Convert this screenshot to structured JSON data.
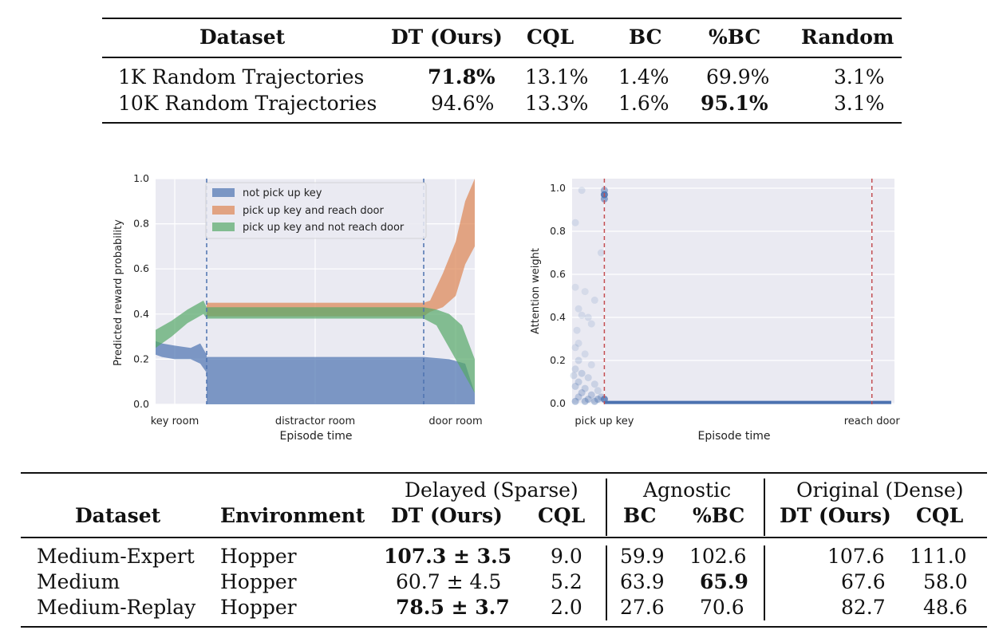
{
  "table1": {
    "headers": [
      "Dataset",
      "DT (Ours)",
      "CQL",
      "BC",
      "%BC",
      "Random"
    ],
    "rows": [
      {
        "dataset": "1K Random Trajectories",
        "dt": "71.8%",
        "cql": "13.1%",
        "bc": "1.4%",
        "pbc": "69.9%",
        "random": "3.1%"
      },
      {
        "dataset": "10K Random Trajectories",
        "dt": "94.6%",
        "cql": "13.3%",
        "bc": "1.6%",
        "pbc": "95.1%",
        "random": "3.1%"
      }
    ]
  },
  "chart_data": [
    {
      "type": "area",
      "xlabel": "Episode time",
      "ylabel": "Predicted reward probability",
      "ylim": [
        0,
        1.0
      ],
      "yticks": [
        "0.0",
        "0.2",
        "0.4",
        "0.6",
        "0.8",
        "1.0"
      ],
      "xtick_labels": [
        "key room",
        "distractor room",
        "door room"
      ],
      "legend": [
        "not pick up key",
        "pick up key and reach door",
        "pick up key and not reach door"
      ],
      "legend_position": "top-center",
      "grid": true,
      "colors": {
        "blue": "#4c72b0",
        "orange": "#dd8452",
        "green": "#55a868",
        "bg": "#eaeaf2",
        "vline": "#4c72b0"
      },
      "series": [
        {
          "name": "not pick up key",
          "x": [
            0,
            0.02,
            0.06,
            0.11,
            0.14,
            0.16,
            0.16,
            0.5,
            0.84,
            0.92,
            0.97,
            1.0
          ],
          "upper": [
            0.28,
            0.27,
            0.26,
            0.25,
            0.27,
            0.22,
            0.21,
            0.21,
            0.21,
            0.2,
            0.18,
            0.05
          ],
          "lower": [
            0.22,
            0.21,
            0.2,
            0.2,
            0.18,
            0.14,
            0.0,
            0.0,
            0.0,
            0.0,
            0.0,
            0.0
          ]
        },
        {
          "name": "pick up key and reach door",
          "x": [
            0.16,
            0.5,
            0.84,
            0.86,
            0.9,
            0.94,
            0.97,
            1.0
          ],
          "upper": [
            0.45,
            0.45,
            0.45,
            0.46,
            0.58,
            0.72,
            0.9,
            1.0
          ],
          "lower": [
            0.39,
            0.39,
            0.39,
            0.41,
            0.43,
            0.48,
            0.62,
            0.7
          ]
        },
        {
          "name": "pick up key and not reach door",
          "x": [
            0,
            0.05,
            0.1,
            0.15,
            0.16,
            0.5,
            0.84,
            0.88,
            0.92,
            0.96,
            1.0
          ],
          "upper": [
            0.33,
            0.37,
            0.42,
            0.46,
            0.43,
            0.43,
            0.43,
            0.42,
            0.4,
            0.35,
            0.2
          ],
          "lower": [
            0.25,
            0.3,
            0.36,
            0.4,
            0.38,
            0.38,
            0.38,
            0.35,
            0.25,
            0.15,
            0.05
          ]
        }
      ],
      "vlines_x": [
        0.16,
        0.84
      ]
    },
    {
      "type": "scatter",
      "xlabel": "Episode time",
      "ylabel": "Attention weight",
      "ylim": [
        0,
        1.0
      ],
      "yticks": [
        "0.0",
        "0.2",
        "0.4",
        "0.6",
        "0.8",
        "1.0"
      ],
      "xtick_labels": [
        "pick up key",
        "reach door"
      ],
      "grid": true,
      "colors": {
        "point": "#4c72b0",
        "vline": "#c44e52",
        "bg": "#eaeaf2"
      },
      "vlines_x": [
        0.1,
        0.93
      ],
      "points": [
        {
          "x": 0.1,
          "y": 0.97,
          "a": 0.9
        },
        {
          "x": 0.1,
          "y": 0.99,
          "a": 0.5
        },
        {
          "x": 0.1,
          "y": 0.95,
          "a": 0.6
        },
        {
          "x": 0.03,
          "y": 0.99,
          "a": 0.15
        },
        {
          "x": 0.01,
          "y": 0.84,
          "a": 0.15
        },
        {
          "x": 0.09,
          "y": 0.7,
          "a": 0.15
        },
        {
          "x": 0.01,
          "y": 0.54,
          "a": 0.12
        },
        {
          "x": 0.04,
          "y": 0.52,
          "a": 0.12
        },
        {
          "x": 0.07,
          "y": 0.48,
          "a": 0.15
        },
        {
          "x": 0.02,
          "y": 0.44,
          "a": 0.15
        },
        {
          "x": 0.03,
          "y": 0.41,
          "a": 0.15
        },
        {
          "x": 0.05,
          "y": 0.4,
          "a": 0.15
        },
        {
          "x": 0.06,
          "y": 0.37,
          "a": 0.15
        },
        {
          "x": 0.015,
          "y": 0.34,
          "a": 0.15
        },
        {
          "x": 0.02,
          "y": 0.28,
          "a": 0.15
        },
        {
          "x": 0.01,
          "y": 0.26,
          "a": 0.15
        },
        {
          "x": 0.04,
          "y": 0.23,
          "a": 0.15
        },
        {
          "x": 0.02,
          "y": 0.2,
          "a": 0.2
        },
        {
          "x": 0.06,
          "y": 0.18,
          "a": 0.15
        },
        {
          "x": 0.01,
          "y": 0.16,
          "a": 0.2
        },
        {
          "x": 0.03,
          "y": 0.14,
          "a": 0.25
        },
        {
          "x": 0.005,
          "y": 0.13,
          "a": 0.2
        },
        {
          "x": 0.05,
          "y": 0.12,
          "a": 0.2
        },
        {
          "x": 0.02,
          "y": 0.1,
          "a": 0.25
        },
        {
          "x": 0.07,
          "y": 0.09,
          "a": 0.2
        },
        {
          "x": 0.01,
          "y": 0.08,
          "a": 0.25
        },
        {
          "x": 0.04,
          "y": 0.07,
          "a": 0.25
        },
        {
          "x": 0.08,
          "y": 0.06,
          "a": 0.2
        },
        {
          "x": 0.03,
          "y": 0.05,
          "a": 0.3
        },
        {
          "x": 0.06,
          "y": 0.04,
          "a": 0.3
        },
        {
          "x": 0.09,
          "y": 0.03,
          "a": 0.3
        },
        {
          "x": 0.02,
          "y": 0.03,
          "a": 0.3
        },
        {
          "x": 0.05,
          "y": 0.02,
          "a": 0.35
        },
        {
          "x": 0.08,
          "y": 0.02,
          "a": 0.4
        },
        {
          "x": 0.01,
          "y": 0.01,
          "a": 0.4
        },
        {
          "x": 0.1,
          "y": 0.02,
          "a": 0.8
        },
        {
          "x": 0.04,
          "y": 0.01,
          "a": 0.4
        },
        {
          "x": 0.07,
          "y": 0.01,
          "a": 0.4
        }
      ]
    }
  ],
  "table2": {
    "groups": [
      "Delayed (Sparse)",
      "Agnostic",
      "Original (Dense)"
    ],
    "headers": [
      "Dataset",
      "Environment",
      "DT (Ours)",
      "CQL",
      "BC",
      "%BC",
      "DT (Ours)",
      "CQL"
    ],
    "rows": [
      {
        "dataset": "Medium-Expert",
        "env": "Hopper",
        "dt": "107.3 ± 3.5",
        "cql": "9.0",
        "bc": "59.9",
        "pbc": "102.6",
        "dt_orig": "107.6",
        "cql_orig": "111.0"
      },
      {
        "dataset": "Medium",
        "env": "Hopper",
        "dt": "60.7 ± 4.5",
        "cql": "5.2",
        "bc": "63.9",
        "pbc": "65.9",
        "dt_orig": "67.6",
        "cql_orig": "58.0"
      },
      {
        "dataset": "Medium-Replay",
        "env": "Hopper",
        "dt": "78.5 ± 3.7",
        "cql": "2.0",
        "bc": "27.6",
        "pbc": "70.6",
        "dt_orig": "82.7",
        "cql_orig": "48.6"
      }
    ]
  }
}
